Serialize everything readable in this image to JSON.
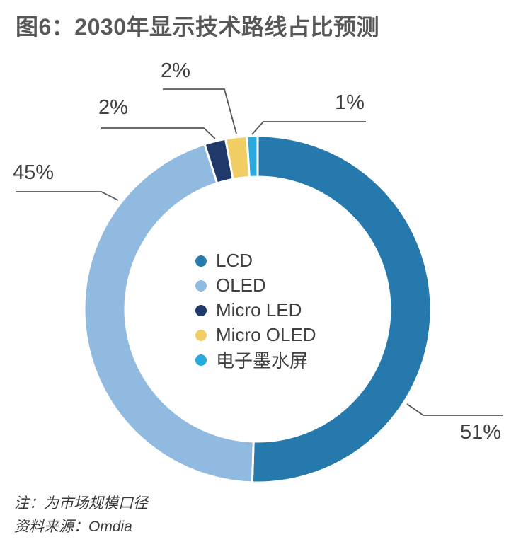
{
  "page": {
    "title": "图6：2030年显示技术路线占比预测"
  },
  "chart_data": {
    "type": "pie",
    "subtype": "donut",
    "title": "图6：2030年显示技术路线占比预测",
    "unit": "%",
    "start_angle_deg": 0,
    "direction": "clockwise",
    "legend_position": "center",
    "slices": [
      {
        "name": "LCD",
        "value": 51,
        "label": "51%",
        "color": "#2679AD"
      },
      {
        "name": "OLED",
        "value": 45,
        "label": "45%",
        "color": "#90BADF"
      },
      {
        "name": "Micro LED",
        "value": 2,
        "label": "2%",
        "color": "#1F3A6A"
      },
      {
        "name": "Micro OLED",
        "value": 2,
        "label": "2%",
        "color": "#F0CE63"
      },
      {
        "name": "电子墨水屏",
        "value": 1,
        "label": "1%",
        "color": "#29AADE"
      }
    ]
  },
  "notes": {
    "note": "注：为市场规模口径",
    "source": "资料来源：Omdia"
  },
  "style": {
    "leader_line_color": "#56575a",
    "gap_color": "#ffffff"
  }
}
